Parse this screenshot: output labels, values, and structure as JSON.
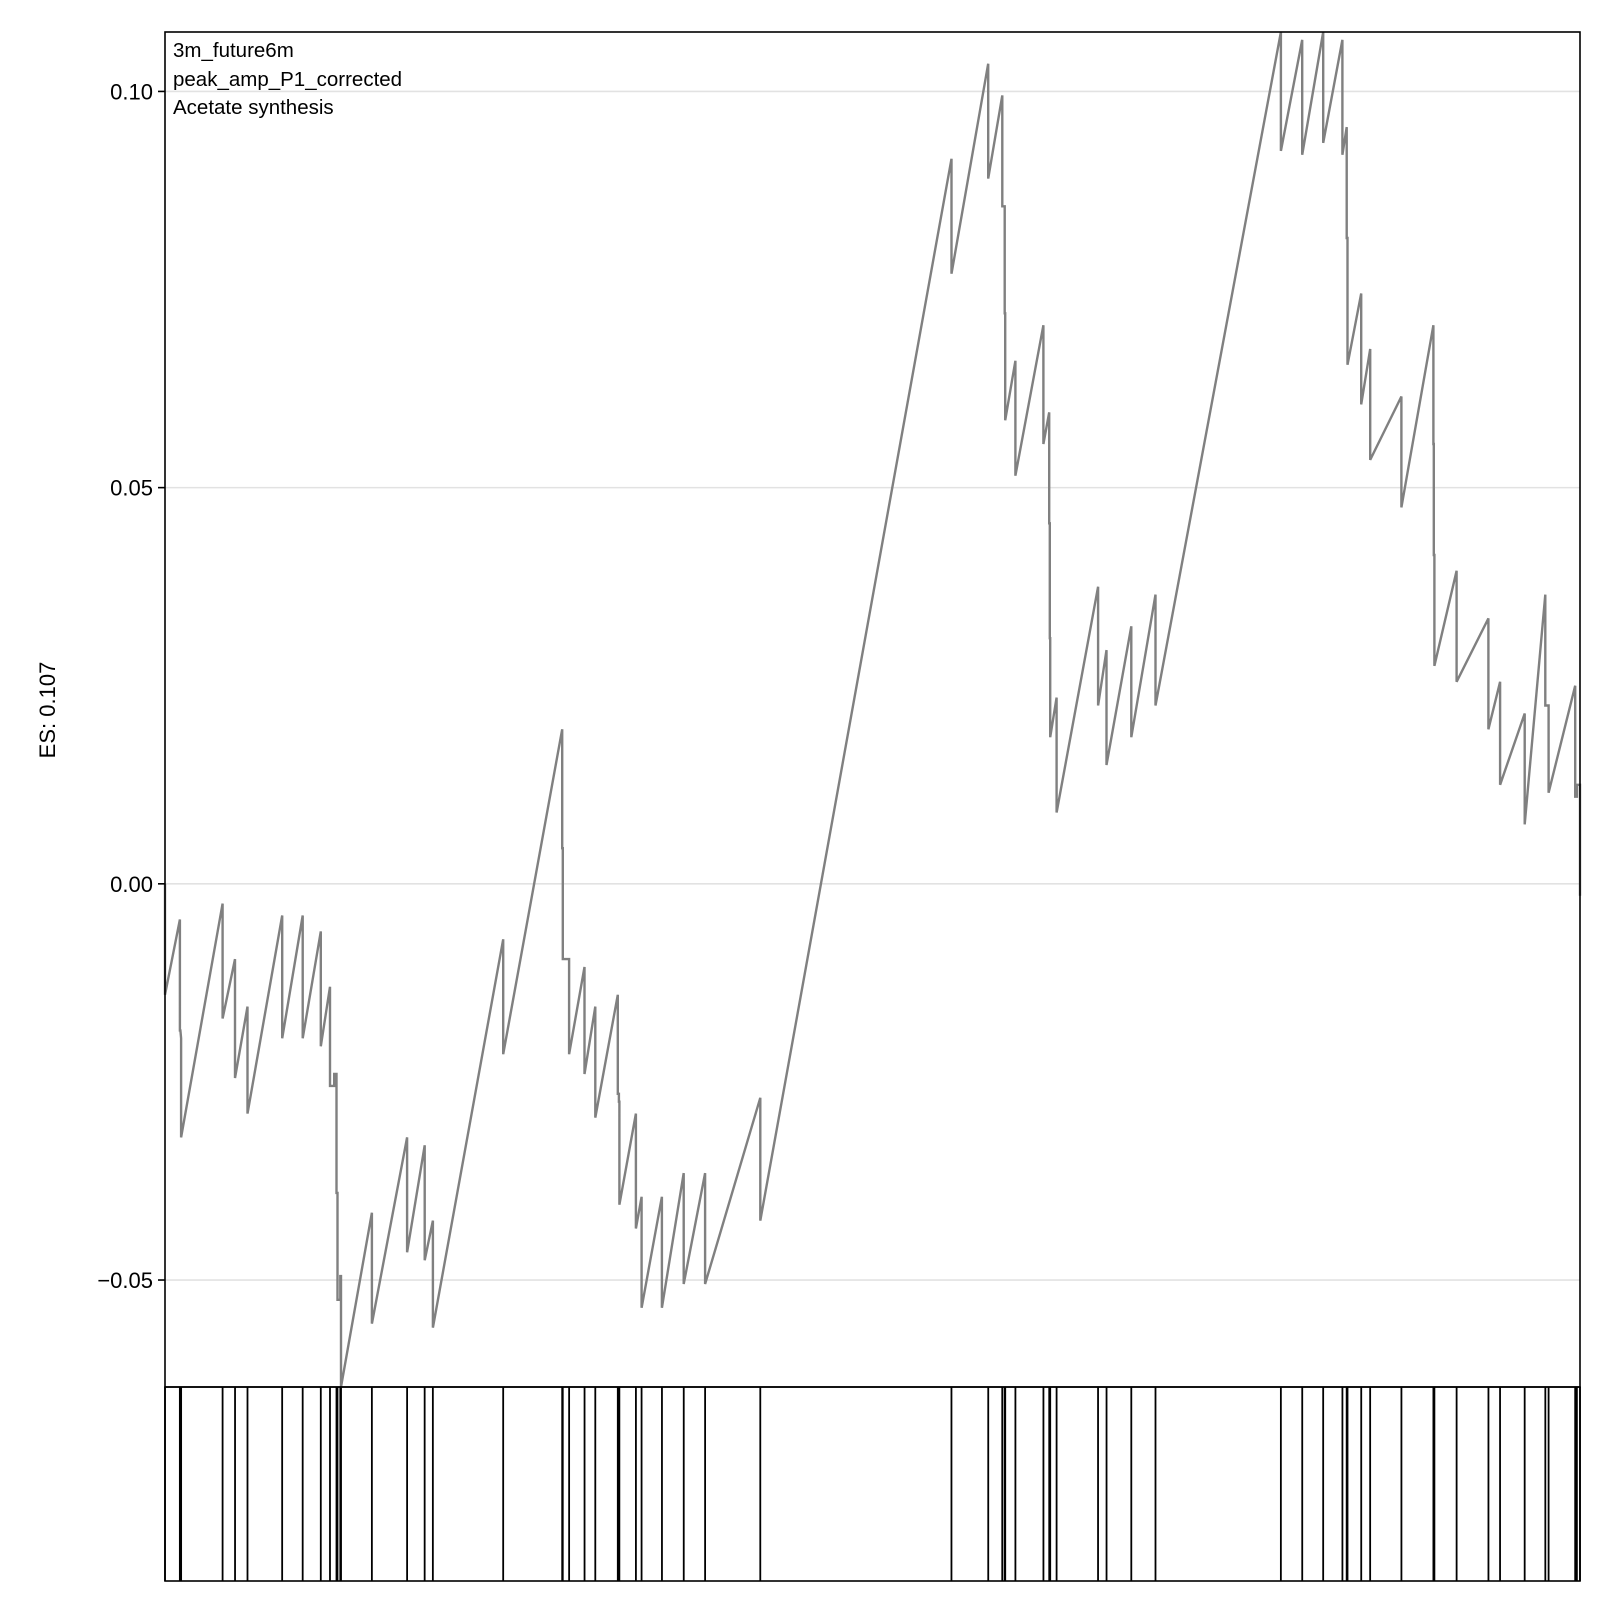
{
  "chart_data": {
    "type": "line",
    "ylabel": "ES: 0.107",
    "annotations": [
      "3m_future6m",
      "peak_amp_P1_corrected",
      "Acetate synthesis"
    ],
    "ylim": [
      -0.0635,
      0.1075
    ],
    "yticks": [
      0.1,
      0.05,
      0.0,
      -0.05
    ],
    "ytick_labels": [
      "0.10",
      "0.05",
      "0.00",
      "−0.05"
    ],
    "xlim": [
      0,
      1000
    ],
    "grid": "horizontal",
    "line_color": "#808080",
    "series": [
      {
        "values": [
          [
            0.0,
            0.0
          ],
          [
            0.0,
            -0.014
          ],
          [
            10.5,
            -0.0045
          ],
          [
            10.5,
            -0.0185
          ],
          [
            10.9,
            -0.0185
          ],
          [
            11.4,
            -0.0195
          ],
          [
            11.4,
            -0.032
          ],
          [
            40.7,
            -0.0025
          ],
          [
            40.7,
            -0.017
          ],
          [
            49.5,
            -0.0095
          ],
          [
            49.5,
            -0.0245
          ],
          [
            58.3,
            -0.0155
          ],
          [
            58.3,
            -0.029
          ],
          [
            82.8,
            -0.004
          ],
          [
            82.8,
            -0.0195
          ],
          [
            97.3,
            -0.004
          ],
          [
            97.3,
            -0.0195
          ],
          [
            110.1,
            -0.006
          ],
          [
            110.1,
            -0.0205
          ],
          [
            116.6,
            -0.013
          ],
          [
            116.6,
            -0.0255
          ],
          [
            119.6,
            -0.0255
          ],
          [
            119.6,
            -0.024
          ],
          [
            121.2,
            -0.024
          ],
          [
            121.2,
            -0.039
          ],
          [
            121.9,
            -0.039
          ],
          [
            121.9,
            -0.0525
          ],
          [
            123.9,
            -0.0525
          ],
          [
            123.9,
            -0.0495
          ],
          [
            124.4,
            -0.0495
          ],
          [
            124.4,
            -0.0635
          ],
          [
            146.2,
            -0.0415
          ],
          [
            146.2,
            -0.0555
          ],
          [
            171.1,
            -0.032
          ],
          [
            171.1,
            -0.0465
          ],
          [
            183.5,
            -0.033
          ],
          [
            183.5,
            -0.0475
          ],
          [
            189.3,
            -0.0425
          ],
          [
            189.3,
            -0.056
          ],
          [
            239.0,
            -0.007
          ],
          [
            239.0,
            -0.0215
          ],
          [
            280.7,
            0.0195
          ],
          [
            280.7,
            0.0045
          ],
          [
            281.1,
            0.0045
          ],
          [
            281.1,
            -0.0095
          ],
          [
            285.6,
            -0.0095
          ],
          [
            285.6,
            -0.0215
          ],
          [
            296.5,
            -0.0105
          ],
          [
            296.5,
            -0.024
          ],
          [
            304.1,
            -0.0155
          ],
          [
            304.1,
            -0.0295
          ],
          [
            320.0,
            -0.014
          ],
          [
            320.0,
            -0.0265
          ],
          [
            320.8,
            -0.0265
          ],
          [
            320.8,
            -0.0275
          ],
          [
            321.1,
            -0.0275
          ],
          [
            321.1,
            -0.0405
          ],
          [
            332.8,
            -0.029
          ],
          [
            332.8,
            -0.0435
          ],
          [
            336.8,
            -0.0395
          ],
          [
            336.8,
            -0.0535
          ],
          [
            351.2,
            -0.0395
          ],
          [
            351.2,
            -0.0535
          ],
          [
            366.6,
            -0.0365
          ],
          [
            366.6,
            -0.0505
          ],
          [
            381.7,
            -0.0365
          ],
          [
            381.7,
            -0.0505
          ],
          [
            420.7,
            -0.027
          ],
          [
            420.7,
            -0.0425
          ],
          [
            555.8,
            0.0915
          ],
          [
            555.8,
            0.077
          ],
          [
            581.8,
            0.1035
          ],
          [
            581.8,
            0.089
          ],
          [
            591.7,
            0.0995
          ],
          [
            591.7,
            0.0855
          ],
          [
            593.4,
            0.0855
          ],
          [
            593.4,
            0.072
          ],
          [
            593.8,
            0.072
          ],
          [
            593.8,
            0.0585
          ],
          [
            601.0,
            0.066
          ],
          [
            601.0,
            0.0515
          ],
          [
            620.8,
            0.0705
          ],
          [
            620.8,
            0.0555
          ],
          [
            624.9,
            0.0595
          ],
          [
            624.9,
            0.0455
          ],
          [
            625.3,
            0.0455
          ],
          [
            625.3,
            0.031
          ],
          [
            625.6,
            0.031
          ],
          [
            625.6,
            0.0185
          ],
          [
            630.1,
            0.0235
          ],
          [
            630.1,
            0.009
          ],
          [
            659.4,
            0.0375
          ],
          [
            659.4,
            0.0225
          ],
          [
            665.4,
            0.0295
          ],
          [
            665.4,
            0.015
          ],
          [
            682.9,
            0.0325
          ],
          [
            682.9,
            0.0185
          ],
          [
            700.0,
            0.0365
          ],
          [
            700.0,
            0.0225
          ],
          [
            788.6,
            0.1075
          ],
          [
            788.6,
            0.0925
          ],
          [
            803.7,
            0.1065
          ],
          [
            803.7,
            0.092
          ],
          [
            818.5,
            0.1075
          ],
          [
            818.5,
            0.0935
          ],
          [
            832.1,
            0.1065
          ],
          [
            832.1,
            0.092
          ],
          [
            835.1,
            0.0955
          ],
          [
            835.1,
            0.0815
          ],
          [
            835.7,
            0.0815
          ],
          [
            835.7,
            0.0655
          ],
          [
            845.4,
            0.0745
          ],
          [
            845.4,
            0.0605
          ],
          [
            851.7,
            0.0675
          ],
          [
            851.7,
            0.0535
          ],
          [
            873.8,
            0.0615
          ],
          [
            873.8,
            0.0475
          ],
          [
            896.4,
            0.0705
          ],
          [
            896.4,
            0.0555
          ],
          [
            896.7,
            0.0555
          ],
          [
            896.7,
            0.0415
          ],
          [
            897.1,
            0.0415
          ],
          [
            897.1,
            0.0275
          ],
          [
            912.8,
            0.0395
          ],
          [
            912.8,
            0.0255
          ],
          [
            935.3,
            0.0335
          ],
          [
            935.3,
            0.0195
          ],
          [
            943.5,
            0.0255
          ],
          [
            943.5,
            0.0125
          ],
          [
            960.9,
            0.0215
          ],
          [
            960.9,
            0.0075
          ],
          [
            975.5,
            0.0365
          ],
          [
            975.5,
            0.0225
          ],
          [
            977.8,
            0.0225
          ],
          [
            977.8,
            0.0115
          ],
          [
            996.6,
            0.025
          ],
          [
            996.6,
            0.011
          ],
          [
            997.8,
            0.011
          ],
          [
            997.8,
            0.0125
          ],
          [
            1000.0,
            0.0125
          ],
          [
            1000.0,
            -0.0015
          ]
        ]
      }
    ],
    "hits": [
      0.0,
      10.5,
      11.4,
      40.7,
      49.5,
      58.3,
      82.8,
      97.3,
      110.1,
      116.6,
      121.2,
      121.9,
      123.9,
      124.4,
      146.2,
      171.1,
      183.5,
      189.3,
      239.0,
      280.7,
      281.1,
      285.6,
      296.5,
      304.1,
      320.0,
      320.8,
      321.1,
      332.8,
      336.8,
      351.2,
      366.6,
      381.7,
      420.7,
      555.8,
      581.8,
      591.7,
      593.4,
      593.8,
      601.0,
      620.8,
      624.9,
      625.3,
      625.6,
      630.1,
      659.4,
      665.4,
      682.9,
      700.0,
      788.6,
      803.7,
      818.5,
      832.1,
      835.1,
      835.7,
      845.4,
      851.7,
      873.8,
      896.4,
      896.7,
      897.1,
      912.8,
      935.3,
      943.5,
      960.9,
      975.5,
      977.8,
      996.6,
      997.8,
      1000.0
    ]
  }
}
